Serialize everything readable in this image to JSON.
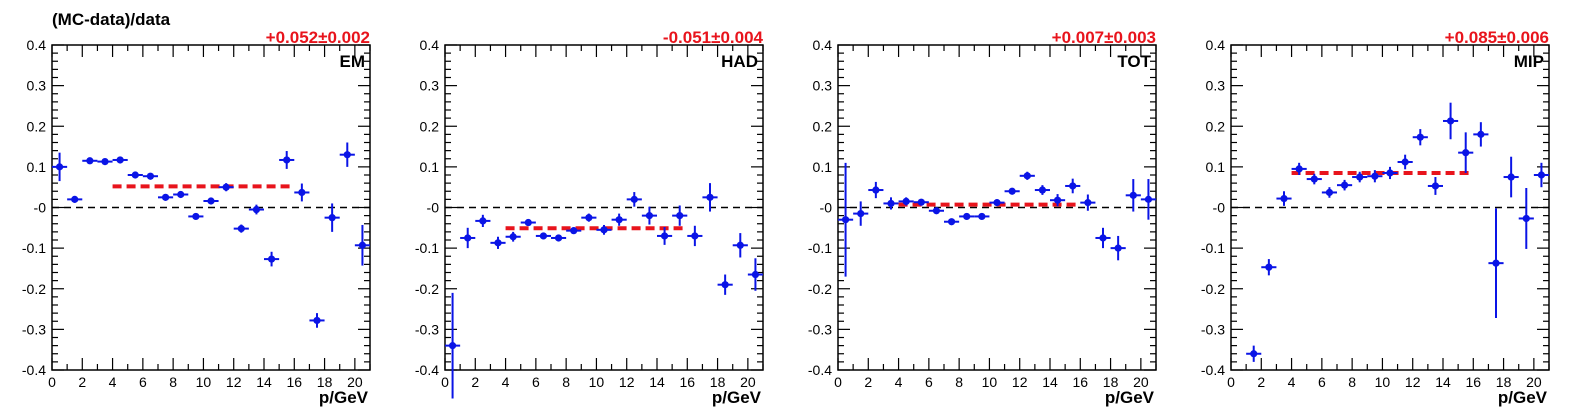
{
  "figure": {
    "ylabel": "(MC-data)/data",
    "xlabel": "p/GeV",
    "fit_color": "#e8141c",
    "point_color": "#0a14e6",
    "zero_line_color": "#000000"
  },
  "chart_data": [
    {
      "type": "scatter",
      "panel_label": "EM",
      "fit_label": "+0.052±0.002",
      "fit_value": 0.052,
      "fit_range": [
        4,
        16
      ],
      "xlim": [
        0,
        21
      ],
      "ylim": [
        -0.4,
        0.4
      ],
      "xticks": [
        0,
        2,
        4,
        6,
        8,
        10,
        12,
        14,
        16,
        18,
        20
      ],
      "yticks": [
        -0.4,
        -0.3,
        -0.2,
        -0.1,
        0,
        0.1,
        0.2,
        0.3,
        0.4
      ],
      "ytick_labels": [
        "-0.4",
        "-0.3",
        "-0.2",
        "-0.1",
        "-0",
        "0.1",
        "0.2",
        "0.3",
        "0.4"
      ],
      "reference_line": 0,
      "points": [
        {
          "x": 0.5,
          "y": 0.1,
          "yerr": 0.035
        },
        {
          "x": 1.5,
          "y": 0.02,
          "yerr": 0.008
        },
        {
          "x": 2.5,
          "y": 0.115,
          "yerr": 0.006
        },
        {
          "x": 3.5,
          "y": 0.113,
          "yerr": 0.005
        },
        {
          "x": 4.5,
          "y": 0.117,
          "yerr": 0.005
        },
        {
          "x": 5.5,
          "y": 0.08,
          "yerr": 0.005
        },
        {
          "x": 6.5,
          "y": 0.077,
          "yerr": 0.005
        },
        {
          "x": 7.5,
          "y": 0.025,
          "yerr": 0.005
        },
        {
          "x": 8.5,
          "y": 0.032,
          "yerr": 0.005
        },
        {
          "x": 9.5,
          "y": -0.022,
          "yerr": 0.005
        },
        {
          "x": 10.5,
          "y": 0.016,
          "yerr": 0.008
        },
        {
          "x": 11.5,
          "y": 0.05,
          "yerr": 0.01
        },
        {
          "x": 12.5,
          "y": -0.052,
          "yerr": 0.01
        },
        {
          "x": 13.5,
          "y": -0.005,
          "yerr": 0.012
        },
        {
          "x": 14.5,
          "y": -0.127,
          "yerr": 0.018
        },
        {
          "x": 15.5,
          "y": 0.117,
          "yerr": 0.022
        },
        {
          "x": 16.5,
          "y": 0.037,
          "yerr": 0.022
        },
        {
          "x": 17.5,
          "y": -0.278,
          "yerr": 0.018
        },
        {
          "x": 18.5,
          "y": -0.025,
          "yerr": 0.035
        },
        {
          "x": 19.5,
          "y": 0.13,
          "yerr": 0.03
        },
        {
          "x": 20.5,
          "y": -0.093,
          "yerr": 0.05
        }
      ]
    },
    {
      "type": "scatter",
      "panel_label": "HAD",
      "fit_label": "-0.051±0.004",
      "fit_value": -0.051,
      "fit_range": [
        4,
        16
      ],
      "xlim": [
        0,
        21
      ],
      "ylim": [
        -0.4,
        0.4
      ],
      "xticks": [
        0,
        2,
        4,
        6,
        8,
        10,
        12,
        14,
        16,
        18,
        20
      ],
      "yticks": [
        -0.4,
        -0.3,
        -0.2,
        -0.1,
        0,
        0.1,
        0.2,
        0.3,
        0.4
      ],
      "ytick_labels": [
        "-0.4",
        "-0.3",
        "-0.2",
        "-0.1",
        "-0",
        "0.1",
        "0.2",
        "0.3",
        "0.4"
      ],
      "reference_line": 0,
      "points": [
        {
          "x": 0.5,
          "y": -0.34,
          "yerr": 0.13
        },
        {
          "x": 1.5,
          "y": -0.075,
          "yerr": 0.025
        },
        {
          "x": 2.5,
          "y": -0.033,
          "yerr": 0.015
        },
        {
          "x": 3.5,
          "y": -0.087,
          "yerr": 0.015
        },
        {
          "x": 4.5,
          "y": -0.072,
          "yerr": 0.012
        },
        {
          "x": 5.5,
          "y": -0.037,
          "yerr": 0.008
        },
        {
          "x": 6.5,
          "y": -0.07,
          "yerr": 0.008
        },
        {
          "x": 7.5,
          "y": -0.075,
          "yerr": 0.008
        },
        {
          "x": 8.5,
          "y": -0.057,
          "yerr": 0.008
        },
        {
          "x": 9.5,
          "y": -0.025,
          "yerr": 0.01
        },
        {
          "x": 10.5,
          "y": -0.055,
          "yerr": 0.012
        },
        {
          "x": 11.5,
          "y": -0.03,
          "yerr": 0.015
        },
        {
          "x": 12.5,
          "y": 0.02,
          "yerr": 0.018
        },
        {
          "x": 13.5,
          "y": -0.02,
          "yerr": 0.022
        },
        {
          "x": 14.5,
          "y": -0.07,
          "yerr": 0.022
        },
        {
          "x": 15.5,
          "y": -0.02,
          "yerr": 0.025
        },
        {
          "x": 16.5,
          "y": -0.07,
          "yerr": 0.025
        },
        {
          "x": 17.5,
          "y": 0.025,
          "yerr": 0.035
        },
        {
          "x": 18.5,
          "y": -0.19,
          "yerr": 0.025
        },
        {
          "x": 19.5,
          "y": -0.093,
          "yerr": 0.03
        },
        {
          "x": 20.5,
          "y": -0.165,
          "yerr": 0.04
        }
      ]
    },
    {
      "type": "scatter",
      "panel_label": "TOT",
      "fit_label": "+0.007±0.003",
      "fit_value": 0.007,
      "fit_range": [
        4,
        16
      ],
      "xlim": [
        0,
        21
      ],
      "ylim": [
        -0.4,
        0.4
      ],
      "xticks": [
        0,
        2,
        4,
        6,
        8,
        10,
        12,
        14,
        16,
        18,
        20
      ],
      "yticks": [
        -0.4,
        -0.3,
        -0.2,
        -0.1,
        0,
        0.1,
        0.2,
        0.3,
        0.4
      ],
      "ytick_labels": [
        "-0.4",
        "-0.3",
        "-0.2",
        "-0.1",
        "-0",
        "0.1",
        "0.2",
        "0.3",
        "0.4"
      ],
      "reference_line": 0,
      "points": [
        {
          "x": 0.5,
          "y": -0.03,
          "yerr": 0.14
        },
        {
          "x": 1.5,
          "y": -0.015,
          "yerr": 0.03
        },
        {
          "x": 2.5,
          "y": 0.043,
          "yerr": 0.02
        },
        {
          "x": 3.5,
          "y": 0.01,
          "yerr": 0.015
        },
        {
          "x": 4.5,
          "y": 0.015,
          "yerr": 0.01
        },
        {
          "x": 5.5,
          "y": 0.013,
          "yerr": 0.008
        },
        {
          "x": 6.5,
          "y": -0.008,
          "yerr": 0.006
        },
        {
          "x": 7.5,
          "y": -0.035,
          "yerr": 0.006
        },
        {
          "x": 8.5,
          "y": -0.022,
          "yerr": 0.006
        },
        {
          "x": 9.5,
          "y": -0.022,
          "yerr": 0.006
        },
        {
          "x": 10.5,
          "y": 0.012,
          "yerr": 0.008
        },
        {
          "x": 11.5,
          "y": 0.04,
          "yerr": 0.008
        },
        {
          "x": 12.5,
          "y": 0.078,
          "yerr": 0.01
        },
        {
          "x": 13.5,
          "y": 0.043,
          "yerr": 0.012
        },
        {
          "x": 14.5,
          "y": 0.018,
          "yerr": 0.015
        },
        {
          "x": 15.5,
          "y": 0.053,
          "yerr": 0.018
        },
        {
          "x": 16.5,
          "y": 0.012,
          "yerr": 0.02
        },
        {
          "x": 17.5,
          "y": -0.075,
          "yerr": 0.025
        },
        {
          "x": 18.5,
          "y": -0.1,
          "yerr": 0.03
        },
        {
          "x": 19.5,
          "y": 0.03,
          "yerr": 0.04
        },
        {
          "x": 20.5,
          "y": 0.02,
          "yerr": 0.05
        }
      ]
    },
    {
      "type": "scatter",
      "panel_label": "MIP",
      "fit_label": "+0.085±0.006",
      "fit_value": 0.085,
      "fit_range": [
        4,
        16
      ],
      "xlim": [
        0,
        21
      ],
      "ylim": [
        -0.4,
        0.4
      ],
      "xticks": [
        0,
        2,
        4,
        6,
        8,
        10,
        12,
        14,
        16,
        18,
        20
      ],
      "yticks": [
        -0.4,
        -0.3,
        -0.2,
        -0.1,
        0,
        0.1,
        0.2,
        0.3,
        0.4
      ],
      "ytick_labels": [
        "-0.4",
        "-0.3",
        "-0.2",
        "-0.1",
        "-0",
        "0.1",
        "0.2",
        "0.3",
        "0.4"
      ],
      "reference_line": 0,
      "points": [
        {
          "x": 1.5,
          "y": -0.36,
          "yerr": 0.02
        },
        {
          "x": 2.5,
          "y": -0.147,
          "yerr": 0.02
        },
        {
          "x": 3.5,
          "y": 0.022,
          "yerr": 0.018
        },
        {
          "x": 4.5,
          "y": 0.095,
          "yerr": 0.015
        },
        {
          "x": 5.5,
          "y": 0.07,
          "yerr": 0.013
        },
        {
          "x": 6.5,
          "y": 0.037,
          "yerr": 0.013
        },
        {
          "x": 7.5,
          "y": 0.055,
          "yerr": 0.013
        },
        {
          "x": 8.5,
          "y": 0.075,
          "yerr": 0.013
        },
        {
          "x": 9.5,
          "y": 0.077,
          "yerr": 0.015
        },
        {
          "x": 10.5,
          "y": 0.085,
          "yerr": 0.015
        },
        {
          "x": 11.5,
          "y": 0.112,
          "yerr": 0.018
        },
        {
          "x": 12.5,
          "y": 0.173,
          "yerr": 0.02
        },
        {
          "x": 13.5,
          "y": 0.053,
          "yerr": 0.022
        },
        {
          "x": 14.5,
          "y": 0.213,
          "yerr": 0.045
        },
        {
          "x": 15.5,
          "y": 0.135,
          "yerr": 0.05
        },
        {
          "x": 16.5,
          "y": 0.18,
          "yerr": 0.03
        },
        {
          "x": 17.5,
          "y": -0.137,
          "yerr": 0.135
        },
        {
          "x": 18.5,
          "y": 0.075,
          "yerr": 0.05
        },
        {
          "x": 19.5,
          "y": -0.027,
          "yerr": 0.075
        },
        {
          "x": 20.5,
          "y": 0.08,
          "yerr": 0.03
        }
      ]
    }
  ]
}
